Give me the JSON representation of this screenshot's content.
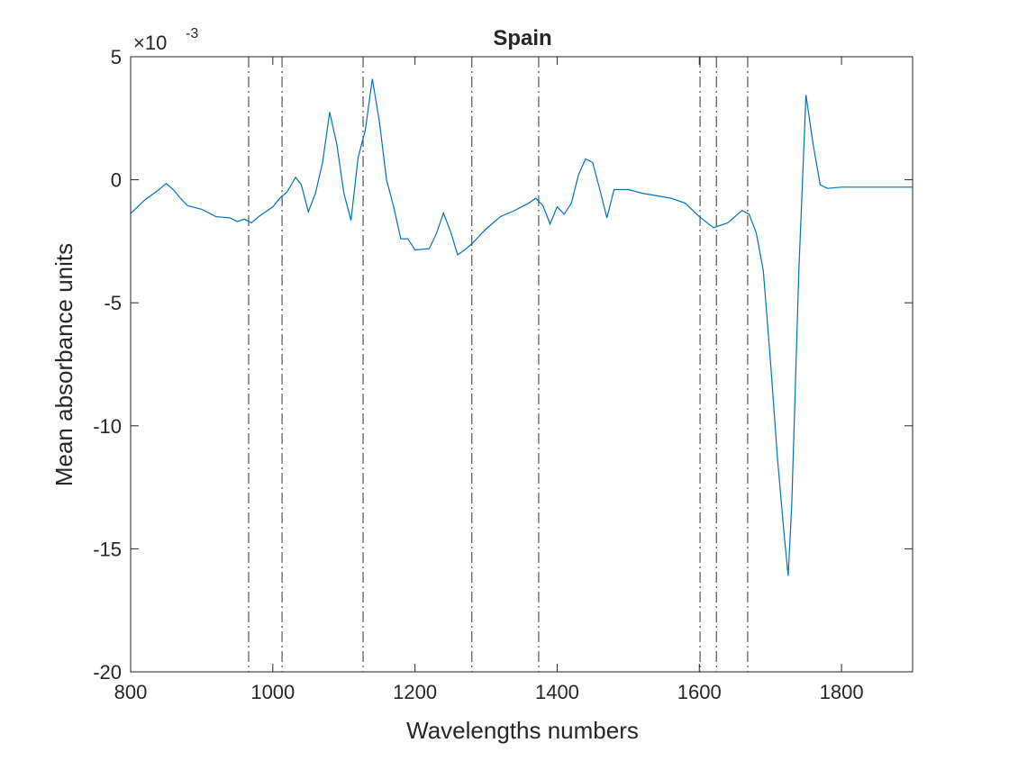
{
  "chart_data": {
    "type": "line",
    "title": "Spain",
    "xlabel": "Wavelengths numbers",
    "ylabel": "Mean absorbance units",
    "y_multiplier": {
      "base": "×10",
      "power": "-3"
    },
    "xlim": [
      800,
      1900
    ],
    "xticks": [
      800,
      1000,
      1200,
      1400,
      1600,
      1800
    ],
    "ylim": [
      -20,
      5
    ],
    "yticks": [
      -20,
      -15,
      -10,
      -5,
      0,
      5
    ],
    "vlines": [
      966,
      1013,
      1127,
      1280,
      1374,
      1601,
      1624,
      1668
    ],
    "series": [
      {
        "color": "#0072bd",
        "x": [
          800,
          820,
          840,
          850,
          860,
          870,
          880,
          900,
          920,
          940,
          950,
          960,
          970,
          980,
          1000,
          1010,
          1020,
          1032,
          1040,
          1050,
          1060,
          1070,
          1080,
          1090,
          1100,
          1110,
          1120,
          1130,
          1140,
          1150,
          1160,
          1170,
          1180,
          1190,
          1200,
          1220,
          1230,
          1240,
          1250,
          1260,
          1270,
          1280,
          1300,
          1320,
          1340,
          1360,
          1370,
          1380,
          1390,
          1400,
          1410,
          1420,
          1430,
          1440,
          1450,
          1460,
          1470,
          1480,
          1500,
          1520,
          1540,
          1560,
          1580,
          1600,
          1620,
          1640,
          1660,
          1670,
          1680,
          1690,
          1700,
          1710,
          1720,
          1725,
          1730,
          1740,
          1750,
          1760,
          1770,
          1780,
          1800,
          1850,
          1900
        ],
        "values": [
          -1.37,
          -0.82,
          -0.4,
          -0.15,
          -0.4,
          -0.75,
          -1.05,
          -1.2,
          -1.5,
          -1.55,
          -1.7,
          -1.6,
          -1.75,
          -1.5,
          -1.1,
          -0.75,
          -0.5,
          0.1,
          -0.2,
          -1.3,
          -0.55,
          0.7,
          2.75,
          1.45,
          -0.55,
          -1.65,
          0.9,
          2.0,
          4.1,
          2.35,
          0,
          -1.1,
          -2.4,
          -2.4,
          -2.85,
          -2.8,
          -2.2,
          -1.35,
          -2.1,
          -3.05,
          -2.85,
          -2.6,
          -2.0,
          -1.5,
          -1.25,
          -0.95,
          -0.75,
          -1.05,
          -1.8,
          -1.1,
          -1.4,
          -0.95,
          0.2,
          0.85,
          0.7,
          -0.4,
          -1.55,
          -0.4,
          -0.4,
          -0.55,
          -0.65,
          -0.75,
          -0.95,
          -1.5,
          -1.95,
          -1.75,
          -1.25,
          -1.4,
          -2.15,
          -3.7,
          -7.35,
          -11.35,
          -14.65,
          -16.1,
          -13.2,
          -3.7,
          3.45,
          1.45,
          -0.2,
          -0.35,
          -0.3,
          -0.3,
          -0.3
        ]
      }
    ]
  }
}
